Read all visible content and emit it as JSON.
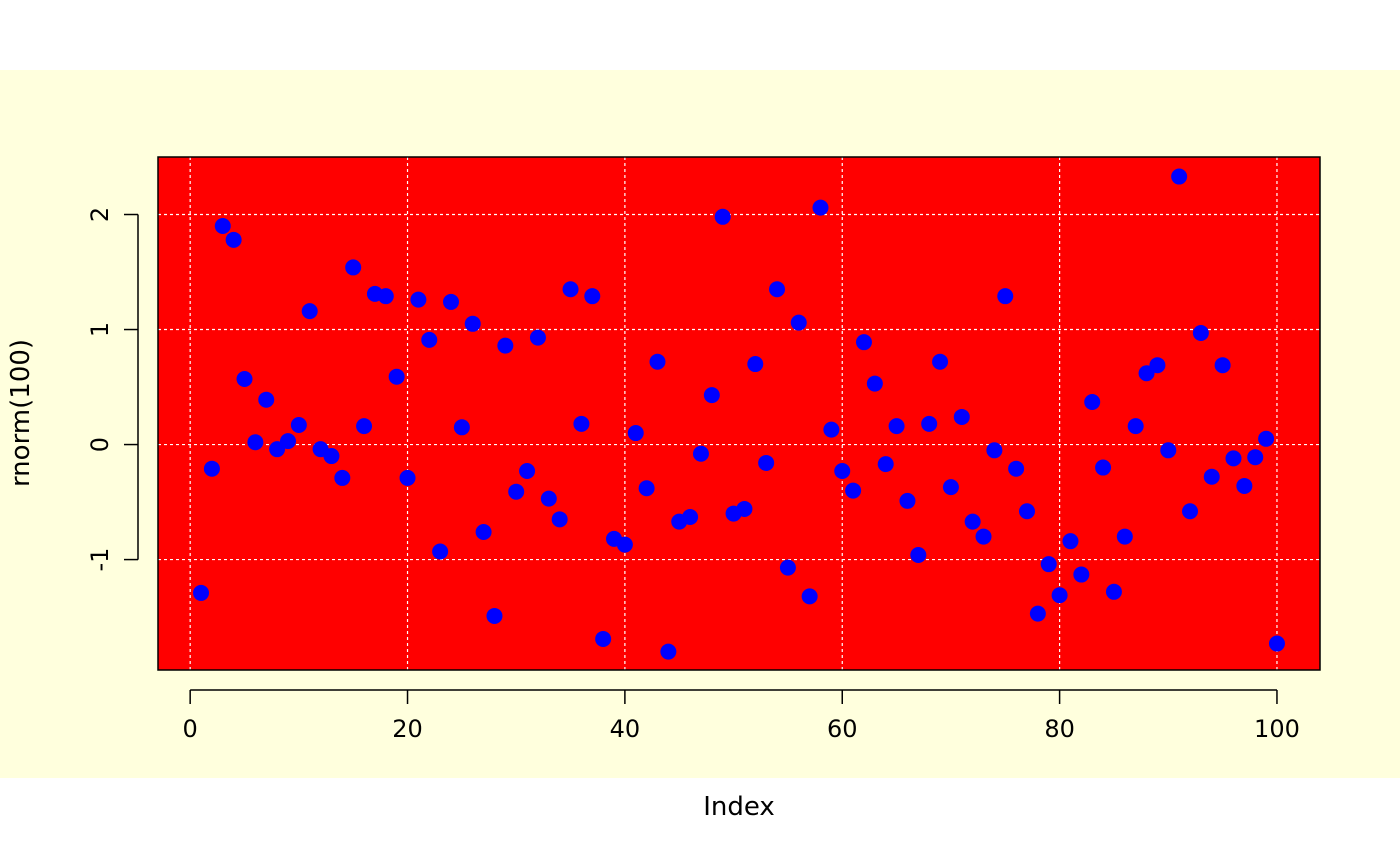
{
  "chart_data": {
    "type": "scatter",
    "title": "",
    "xlabel": "Index",
    "ylabel": "rnorm(100)",
    "xlim": [
      -2.96,
      103.96
    ],
    "ylim": [
      -1.96,
      2.5
    ],
    "x_ticks": [
      0,
      20,
      40,
      60,
      80,
      100
    ],
    "y_ticks": [
      -1,
      0,
      1,
      2
    ],
    "grid": true,
    "colors": {
      "outer_background": "#ffffdd",
      "plot_background": "#ff0000",
      "points": "#0000ff",
      "grid": "#ffffff"
    },
    "x": [
      1,
      2,
      3,
      4,
      5,
      6,
      7,
      8,
      9,
      10,
      11,
      12,
      13,
      14,
      15,
      16,
      17,
      18,
      19,
      20,
      21,
      22,
      23,
      24,
      25,
      26,
      27,
      28,
      29,
      30,
      31,
      32,
      33,
      34,
      35,
      36,
      37,
      38,
      39,
      40,
      41,
      42,
      43,
      44,
      45,
      46,
      47,
      48,
      49,
      50,
      51,
      52,
      53,
      54,
      55,
      56,
      57,
      58,
      59,
      60,
      61,
      62,
      63,
      64,
      65,
      66,
      67,
      68,
      69,
      70,
      71,
      72,
      73,
      74,
      75,
      76,
      77,
      78,
      79,
      80,
      81,
      82,
      83,
      84,
      85,
      86,
      87,
      88,
      89,
      90,
      91,
      92,
      93,
      94,
      95,
      96,
      97,
      98,
      99,
      100
    ],
    "y": [
      -1.29,
      -0.21,
      1.9,
      1.78,
      0.57,
      0.02,
      0.39,
      -0.04,
      0.03,
      0.17,
      1.16,
      -0.04,
      -0.1,
      -0.29,
      1.54,
      0.16,
      1.31,
      1.29,
      0.59,
      -0.29,
      1.26,
      0.91,
      -0.93,
      1.24,
      0.15,
      1.05,
      -0.76,
      -1.49,
      0.86,
      -0.41,
      -0.23,
      0.93,
      -0.47,
      -0.65,
      1.35,
      0.18,
      1.29,
      -1.69,
      -0.82,
      -0.87,
      0.1,
      -0.38,
      0.72,
      -1.8,
      -0.67,
      -0.63,
      -0.08,
      0.43,
      1.98,
      -0.6,
      -0.56,
      0.7,
      -0.16,
      1.35,
      -1.07,
      1.06,
      -1.32,
      2.06,
      0.13,
      -0.23,
      -0.4,
      0.89,
      0.53,
      -0.17,
      0.16,
      -0.49,
      -0.96,
      0.18,
      0.72,
      -0.37,
      0.24,
      -0.67,
      -0.8,
      -0.05,
      1.29,
      -0.21,
      -0.58,
      -1.47,
      -1.04,
      -1.31,
      -0.84,
      -1.13,
      0.37,
      -0.2,
      -1.28,
      -0.8,
      0.16,
      0.62,
      0.69,
      -0.05,
      2.33,
      -0.58,
      0.97,
      -0.28,
      0.69,
      -0.12,
      -0.36,
      -0.11,
      0.05,
      -1.73
    ]
  }
}
